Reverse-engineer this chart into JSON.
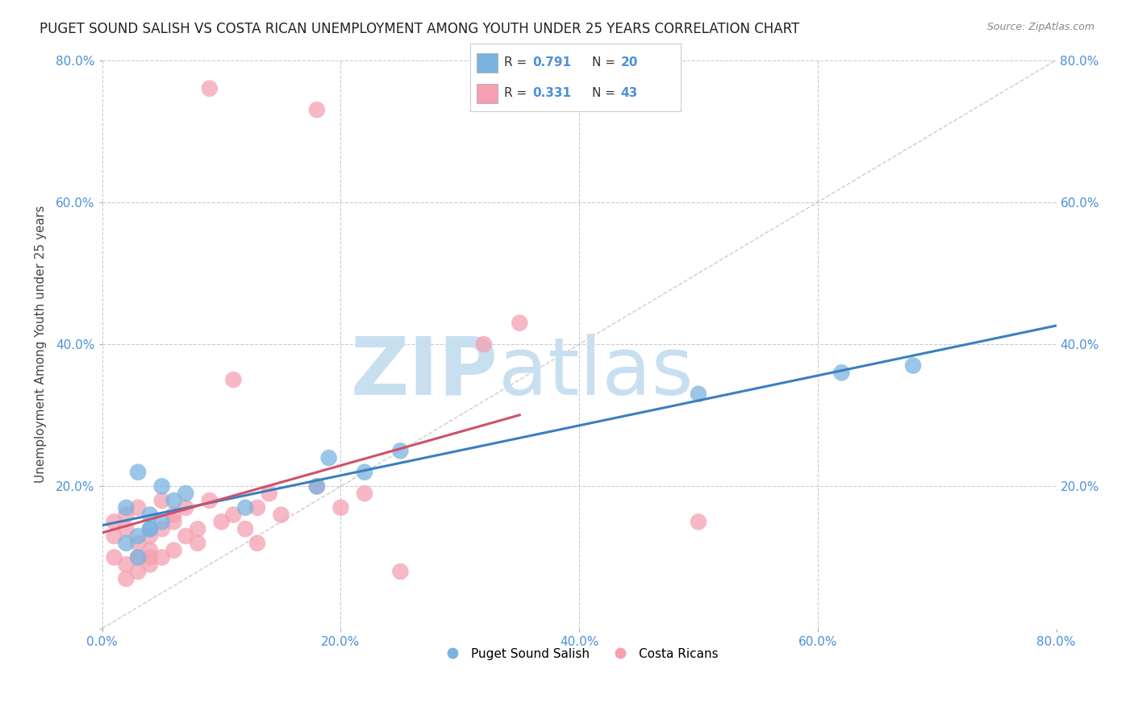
{
  "title": "PUGET SOUND SALISH VS COSTA RICAN UNEMPLOYMENT AMONG YOUTH UNDER 25 YEARS CORRELATION CHART",
  "source": "Source: ZipAtlas.com",
  "ylabel": "Unemployment Among Youth under 25 years",
  "xlim": [
    0,
    0.8
  ],
  "ylim": [
    0,
    0.8
  ],
  "xticks": [
    0.0,
    0.2,
    0.4,
    0.6,
    0.8
  ],
  "yticks": [
    0.0,
    0.2,
    0.4,
    0.6,
    0.8
  ],
  "xtick_labels": [
    "0.0%",
    "20.0%",
    "40.0%",
    "60.0%",
    "80.0%"
  ],
  "ytick_labels": [
    "",
    "20.0%",
    "40.0%",
    "60.0%",
    "80.0%"
  ],
  "blue_R": "0.791",
  "blue_N": "20",
  "pink_R": "0.331",
  "pink_N": "43",
  "blue_color": "#7ab3e0",
  "pink_color": "#f4a0b0",
  "blue_line_color": "#3a7fc1",
  "pink_line_color": "#d0506a",
  "watermark_zip": "ZIP",
  "watermark_atlas": "atlas",
  "legend_label_blue": "Puget Sound Salish",
  "legend_label_pink": "Costa Ricans",
  "blue_points_x": [
    0.02,
    0.03,
    0.04,
    0.03,
    0.05,
    0.04,
    0.06,
    0.05,
    0.03,
    0.02,
    0.04,
    0.07,
    0.12,
    0.18,
    0.22,
    0.19,
    0.25,
    0.5,
    0.62,
    0.68
  ],
  "blue_points_y": [
    0.12,
    0.13,
    0.14,
    0.1,
    0.15,
    0.16,
    0.18,
    0.2,
    0.22,
    0.17,
    0.14,
    0.19,
    0.17,
    0.2,
    0.22,
    0.24,
    0.25,
    0.33,
    0.36,
    0.37
  ],
  "pink_points_x": [
    0.01,
    0.02,
    0.03,
    0.01,
    0.04,
    0.02,
    0.05,
    0.03,
    0.04,
    0.06,
    0.05,
    0.04,
    0.07,
    0.06,
    0.08,
    0.07,
    0.1,
    0.09,
    0.11,
    0.12,
    0.14,
    0.13,
    0.15,
    0.18,
    0.13,
    0.22,
    0.2,
    0.32,
    0.35,
    0.11,
    0.08,
    0.06,
    0.05,
    0.04,
    0.03,
    0.03,
    0.02,
    0.02,
    0.01,
    0.09,
    0.18,
    0.5,
    0.25
  ],
  "pink_points_y": [
    0.13,
    0.14,
    0.12,
    0.15,
    0.13,
    0.16,
    0.14,
    0.17,
    0.11,
    0.15,
    0.18,
    0.1,
    0.13,
    0.16,
    0.14,
    0.17,
    0.15,
    0.18,
    0.16,
    0.14,
    0.19,
    0.17,
    0.16,
    0.2,
    0.12,
    0.19,
    0.17,
    0.4,
    0.43,
    0.35,
    0.12,
    0.11,
    0.1,
    0.09,
    0.08,
    0.1,
    0.07,
    0.09,
    0.1,
    0.76,
    0.73,
    0.15,
    0.08
  ],
  "bg_color": "#ffffff",
  "grid_color": "#cccccc",
  "title_fontsize": 12,
  "axis_label_fontsize": 11,
  "tick_fontsize": 11,
  "watermark_color": "#c8dff0",
  "ref_line_color": "#aaaaaa",
  "blue_tick_color": "#4a90d9"
}
